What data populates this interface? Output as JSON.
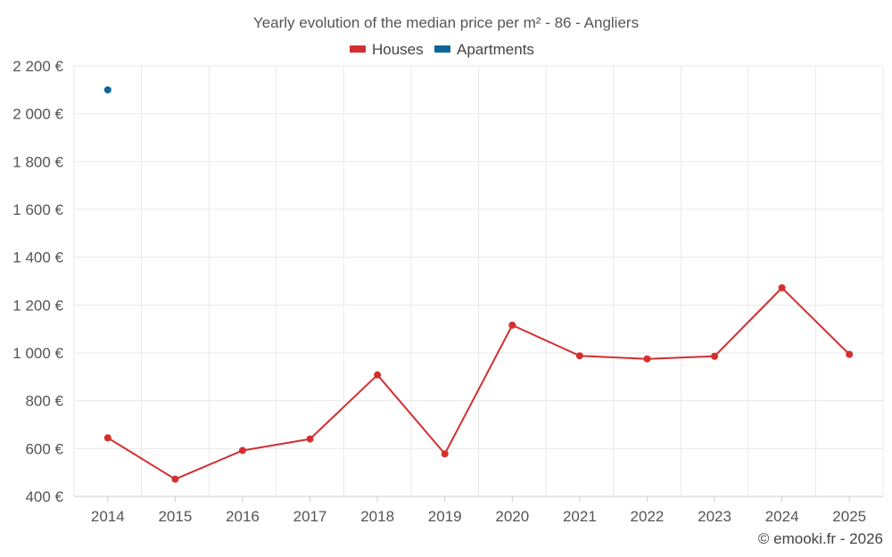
{
  "chart_data": {
    "type": "line",
    "title": "Yearly evolution of the median price per m² - 86 - Angliers",
    "categories": [
      "2014",
      "2015",
      "2016",
      "2017",
      "2018",
      "2019",
      "2020",
      "2021",
      "2022",
      "2023",
      "2024",
      "2025"
    ],
    "series": [
      {
        "name": "Houses",
        "color": "#d32f2f",
        "values": [
          645,
          472,
          592,
          640,
          908,
          578,
          1116,
          988,
          975,
          986,
          1272,
          994
        ]
      },
      {
        "name": "Apartments",
        "color": "#0d6699",
        "values": [
          2100,
          null,
          null,
          null,
          null,
          null,
          null,
          null,
          null,
          null,
          null,
          null
        ]
      }
    ],
    "ylim": [
      400,
      2200
    ],
    "yticks": [
      400,
      600,
      800,
      1000,
      1200,
      1400,
      1600,
      1800,
      2000,
      2200
    ],
    "ytick_labels": [
      "400 €",
      "600 €",
      "800 €",
      "1 000 €",
      "1 200 €",
      "1 400 €",
      "1 600 €",
      "1 800 €",
      "2 000 €",
      "2 200 €"
    ],
    "grid": true,
    "legend_position": "top-center",
    "xlabel": "",
    "ylabel": ""
  },
  "credit": "© emooki.fr - 2026"
}
